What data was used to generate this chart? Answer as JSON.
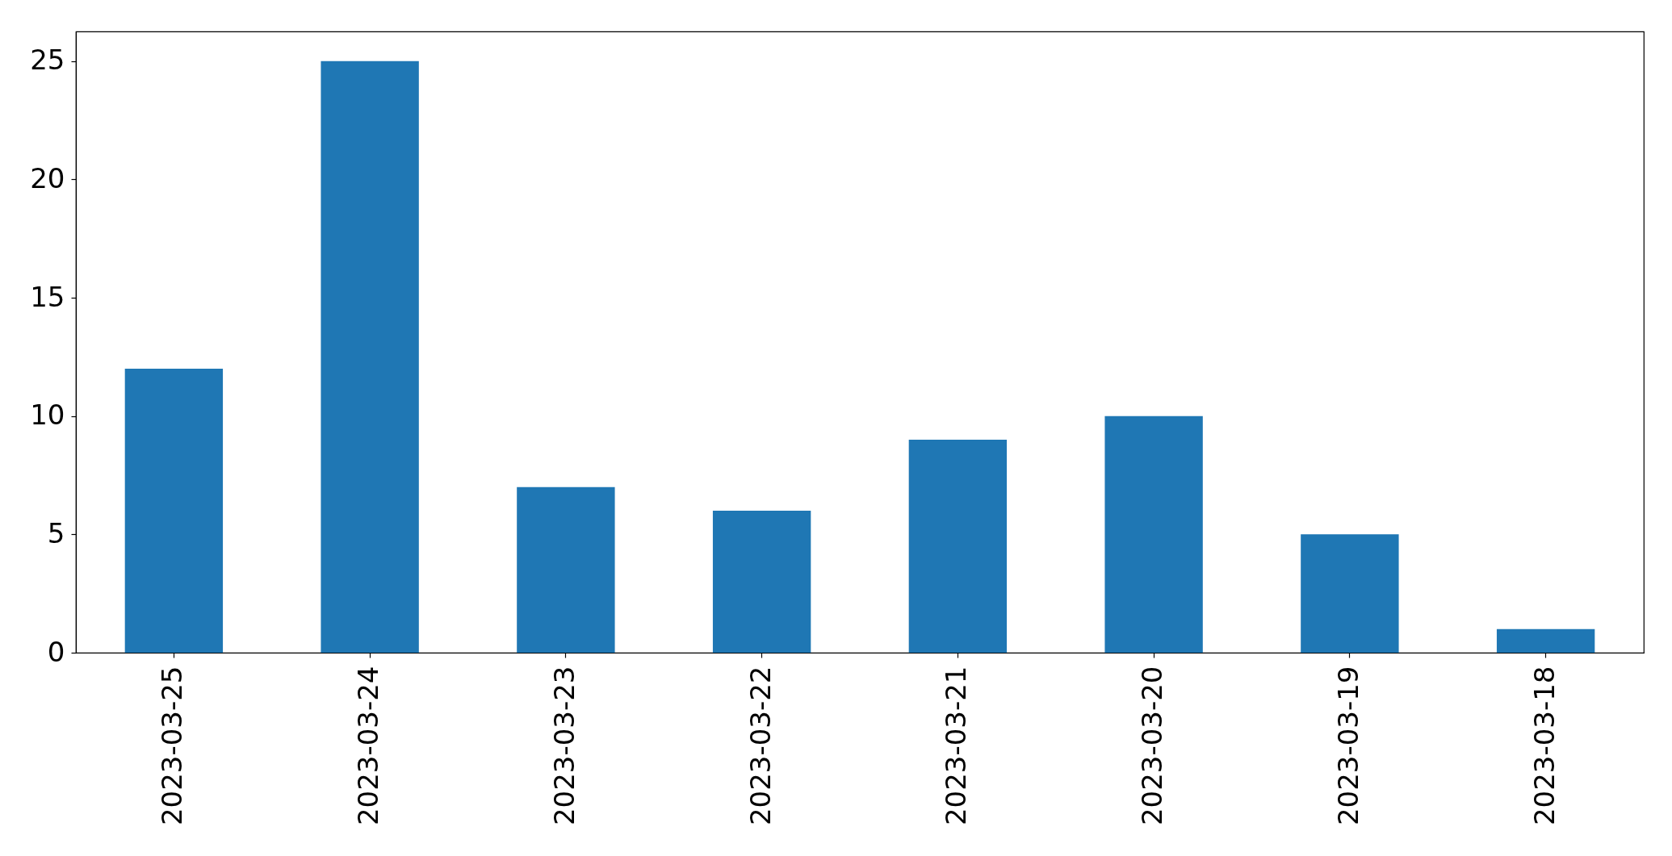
{
  "chart_data": {
    "type": "bar",
    "categories": [
      "2023-03-25",
      "2023-03-24",
      "2023-03-23",
      "2023-03-22",
      "2023-03-21",
      "2023-03-20",
      "2023-03-19",
      "2023-03-18"
    ],
    "values": [
      12,
      25,
      7,
      6,
      9,
      10,
      5,
      1
    ],
    "color": "#1f77b4",
    "ylim": [
      0,
      26.25
    ],
    "yticks": [
      0,
      5,
      10,
      15,
      20,
      25
    ]
  }
}
